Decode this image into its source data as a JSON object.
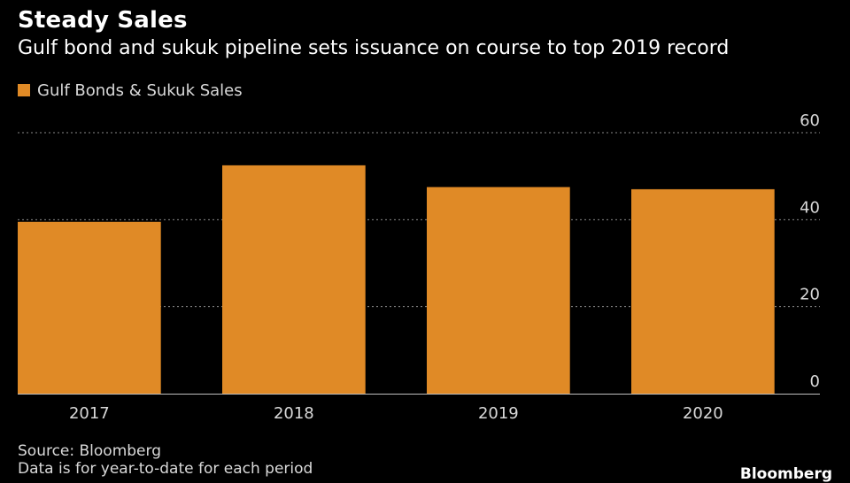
{
  "header": {
    "title": "Steady Sales",
    "subtitle": "Gulf bond and sukuk pipeline sets issuance on course to top 2019 record"
  },
  "footer": {
    "source": "Source: Bloomberg",
    "note": "Data is for year-to-date for each period",
    "brand": "Bloomberg"
  },
  "colors": {
    "bar": "#E08A26",
    "background": "#000000",
    "grid": "#8a8a8a",
    "text": "#ffffff"
  },
  "chart_data": {
    "type": "bar",
    "categories": [
      "2017",
      "2018",
      "2019",
      "2020"
    ],
    "series": [
      {
        "name": "Gulf Bonds & Sukuk Sales",
        "values": [
          39.5,
          52.5,
          47.5,
          47
        ]
      }
    ],
    "ylim": [
      0,
      60
    ],
    "yticks": [
      0,
      20,
      40,
      60
    ],
    "y_axis_side": "right",
    "grid": true,
    "legend_position": "top-left",
    "title": "Steady Sales",
    "subtitle": "Gulf bond and sukuk pipeline sets issuance on course to top 2019 record"
  }
}
